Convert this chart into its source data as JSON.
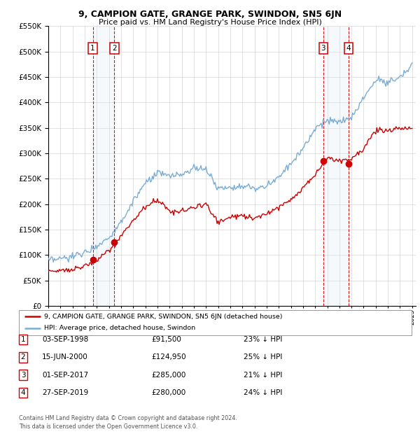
{
  "title": "9, CAMPION GATE, GRANGE PARK, SWINDON, SN5 6JN",
  "subtitle": "Price paid vs. HM Land Registry's House Price Index (HPI)",
  "legend_label_red": "9, CAMPION GATE, GRANGE PARK, SWINDON, SN5 6JN (detached house)",
  "legend_label_blue": "HPI: Average price, detached house, Swindon",
  "footer": "Contains HM Land Registry data © Crown copyright and database right 2024.\nThis data is licensed under the Open Government Licence v3.0.",
  "transactions": [
    {
      "num": 1,
      "date": "03-SEP-1998",
      "price": 91500,
      "price_str": "£91,500",
      "pct": "23%",
      "dir": "↓"
    },
    {
      "num": 2,
      "date": "15-JUN-2000",
      "price": 124950,
      "price_str": "£124,950",
      "pct": "25%",
      "dir": "↓"
    },
    {
      "num": 3,
      "date": "01-SEP-2017",
      "price": 285000,
      "price_str": "£285,000",
      "pct": "21%",
      "dir": "↓"
    },
    {
      "num": 4,
      "date": "27-SEP-2019",
      "price": 280000,
      "price_str": "£280,000",
      "pct": "24%",
      "dir": "↓"
    }
  ],
  "transaction_years": [
    1998.67,
    2000.45,
    2017.67,
    2019.75
  ],
  "transaction_prices": [
    91500,
    124950,
    285000,
    280000
  ],
  "ylim": [
    0,
    550000
  ],
  "yticks": [
    0,
    50000,
    100000,
    150000,
    200000,
    250000,
    300000,
    350000,
    400000,
    450000,
    500000,
    550000
  ],
  "color_red": "#cc0000",
  "color_blue": "#7aadd4",
  "color_vline": "#cc0000",
  "color_shade": "#dde8f5",
  "background_color": "#ffffff",
  "hpi_base_years": [
    1995,
    1996,
    1997,
    1998,
    1999,
    2000,
    2001,
    2002,
    2003,
    2004,
    2005,
    2006,
    2007,
    2008,
    2009,
    2010,
    2011,
    2012,
    2013,
    2014,
    2015,
    2016,
    2017,
    2018,
    2019,
    2020,
    2021,
    2022,
    2023,
    2024,
    2025
  ],
  "hpi_base_vals": [
    88000,
    92000,
    97000,
    105000,
    118000,
    135000,
    165000,
    205000,
    240000,
    260000,
    255000,
    258000,
    270000,
    270000,
    230000,
    235000,
    235000,
    230000,
    235000,
    255000,
    280000,
    310000,
    350000,
    365000,
    360000,
    370000,
    410000,
    445000,
    440000,
    450000,
    475000
  ],
  "pp_base_years": [
    1995,
    1996,
    1997,
    1998,
    1999,
    2000,
    2001,
    2002,
    2003,
    2004,
    2005,
    2006,
    2007,
    2008,
    2009,
    2010,
    2011,
    2012,
    2013,
    2014,
    2015,
    2016,
    2017,
    2018,
    2019,
    2020,
    2021,
    2022,
    2023,
    2024,
    2025
  ],
  "pp_base_vals": [
    68000,
    70000,
    73000,
    78000,
    90000,
    108000,
    138000,
    168000,
    195000,
    210000,
    185000,
    185000,
    195000,
    200000,
    165000,
    175000,
    178000,
    172000,
    182000,
    195000,
    210000,
    232000,
    258000,
    290000,
    285000,
    290000,
    310000,
    345000,
    345000,
    348000,
    350000
  ]
}
